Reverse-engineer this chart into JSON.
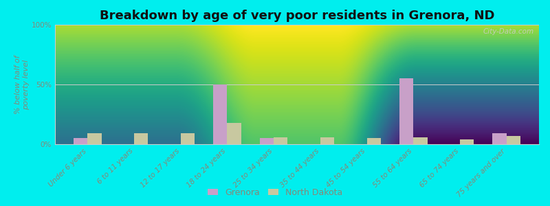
{
  "title": "Breakdown by age of very poor residents in Grenora, ND",
  "ylabel": "% below half of\npoverty level",
  "categories": [
    "Under 6 years",
    "6 to 11 years",
    "12 to 17 years",
    "18 to 24 years",
    "25 to 34 years",
    "35 to 44 years",
    "45 to 54 years",
    "55 to 64 years",
    "65 to 74 years",
    "75 years and over"
  ],
  "grenora_values": [
    5,
    0,
    0,
    50,
    5,
    0,
    0,
    55,
    0,
    9
  ],
  "nd_values": [
    9,
    9,
    9,
    18,
    6,
    6,
    5,
    6,
    4,
    7
  ],
  "grenora_color": "#c8a0c8",
  "nd_color": "#c8c8a0",
  "figure_bg": "#00eeee",
  "axes_bg_top": "#f8fff8",
  "axes_bg_bottom": "#ddf0d0",
  "ylim": [
    0,
    100
  ],
  "bar_width": 0.3,
  "title_fontsize": 13,
  "axis_label_fontsize": 8,
  "tick_fontsize": 7.5,
  "legend_fontsize": 9,
  "watermark": "City-Data.com",
  "tick_color": "#888877",
  "spine_color": "#cccccc"
}
